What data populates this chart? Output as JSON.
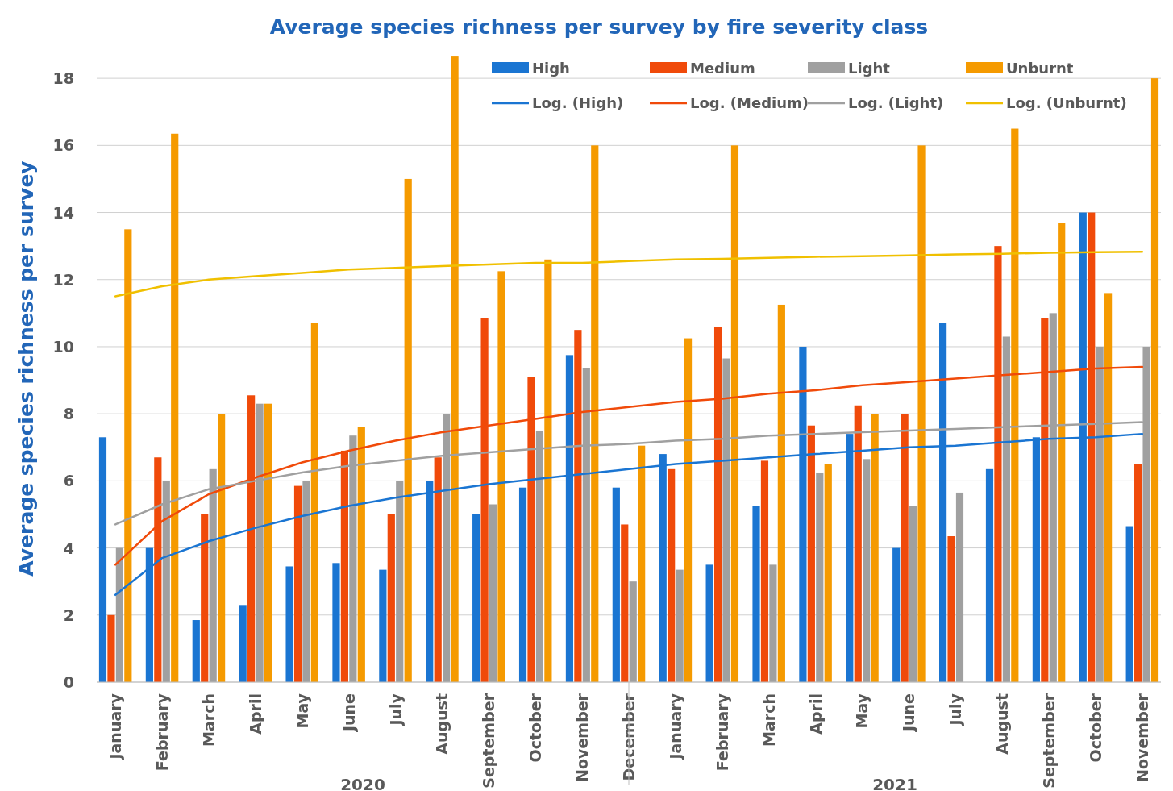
{
  "chart_data": {
    "type": "bar",
    "title": "Average species richness per survey by fire severity class",
    "ylabel": "Average species richness per survey",
    "categories": [
      "January",
      "February",
      "March",
      "April",
      "May",
      "June",
      "July",
      "August",
      "September",
      "October",
      "November",
      "December",
      "January",
      "February",
      "March",
      "April",
      "May",
      "June",
      "July",
      "August",
      "September",
      "October",
      "November"
    ],
    "series": [
      {
        "name": "High",
        "color": "#1a75d2",
        "values": [
          7.3,
          4.0,
          1.85,
          2.3,
          3.45,
          3.55,
          3.35,
          6.0,
          5.0,
          5.8,
          9.75,
          5.8,
          6.8,
          3.5,
          5.25,
          10.0,
          7.4,
          4.0,
          10.7,
          6.35,
          7.3,
          14.0,
          4.65
        ]
      },
      {
        "name": "Medium",
        "color": "#f04a0a",
        "values": [
          2.0,
          6.7,
          5.0,
          8.55,
          5.85,
          6.9,
          5.0,
          6.7,
          10.85,
          9.1,
          10.5,
          4.7,
          6.35,
          10.6,
          6.6,
          7.65,
          8.25,
          8.0,
          4.35,
          13.0,
          10.85,
          14.0,
          6.5
        ]
      },
      {
        "name": "Light",
        "color": "#a0a0a0",
        "values": [
          4.0,
          6.0,
          6.35,
          8.3,
          6.0,
          7.35,
          6.0,
          8.0,
          5.3,
          7.5,
          9.35,
          3.0,
          3.35,
          9.65,
          3.5,
          6.25,
          6.65,
          5.25,
          5.65,
          10.3,
          11.0,
          10.0,
          10.0
        ]
      },
      {
        "name": "Unburnt",
        "color": "#f59a00",
        "values": [
          13.5,
          16.35,
          8.0,
          8.3,
          10.7,
          7.6,
          15.0,
          18.65,
          12.25,
          12.6,
          16.0,
          7.05,
          10.25,
          16.0,
          11.25,
          6.5,
          8.0,
          16.0,
          null,
          16.5,
          13.7,
          11.6,
          18.0
        ]
      },
      {
        "name": "Log. (High)",
        "type": "line",
        "color": "#1a75d2",
        "values": [
          2.6,
          3.7,
          4.2,
          4.6,
          4.95,
          5.25,
          5.5,
          5.7,
          5.9,
          6.05,
          6.2,
          6.35,
          6.5,
          6.6,
          6.7,
          6.8,
          6.9,
          7.0,
          7.05,
          7.15,
          7.25,
          7.3,
          7.4
        ]
      },
      {
        "name": "Log. (Medium)",
        "type": "line",
        "color": "#f04a0a",
        "values": [
          3.5,
          4.8,
          5.6,
          6.1,
          6.55,
          6.9,
          7.2,
          7.45,
          7.65,
          7.85,
          8.05,
          8.2,
          8.35,
          8.45,
          8.6,
          8.7,
          8.85,
          8.95,
          9.05,
          9.15,
          9.25,
          9.35,
          9.4
        ]
      },
      {
        "name": "Log. (Light)",
        "type": "line",
        "color": "#a0a0a0",
        "values": [
          4.7,
          5.3,
          5.75,
          6.0,
          6.25,
          6.45,
          6.6,
          6.75,
          6.85,
          6.95,
          7.05,
          7.1,
          7.2,
          7.25,
          7.35,
          7.4,
          7.45,
          7.5,
          7.55,
          7.6,
          7.65,
          7.7,
          7.75
        ]
      },
      {
        "name": "Log. (Unburnt)",
        "type": "line",
        "color": "#f0c000",
        "values": [
          11.5,
          11.8,
          12.0,
          12.1,
          12.2,
          12.3,
          12.35,
          12.4,
          12.45,
          12.5,
          12.5,
          12.55,
          12.6,
          12.62,
          12.65,
          12.68,
          12.7,
          12.72,
          12.75,
          12.77,
          12.8,
          12.82,
          12.83
        ]
      }
    ],
    "ylim": [
      0,
      18.7
    ],
    "yticks": [
      0,
      2,
      4,
      6,
      8,
      10,
      12,
      14,
      16,
      18
    ],
    "grid": "y",
    "legend": "top right",
    "annotations": [
      "2020",
      "2021"
    ]
  }
}
